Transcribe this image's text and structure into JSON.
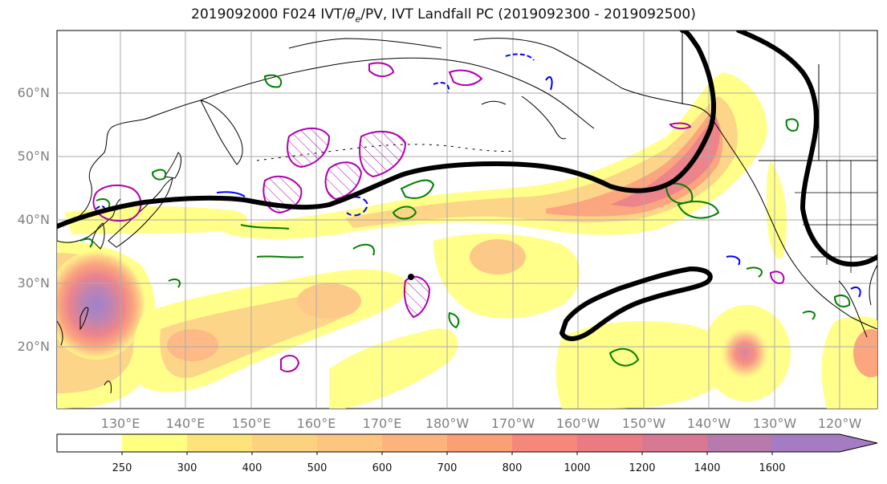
{
  "title": "2019092000 F024 IVT/θe/PV, IVT Landfall PC (2019092300 - 2019092500)",
  "title_parts": {
    "prefix": "2019092000 F024 IVT/",
    "theta": "θ",
    "theta_sub": "e",
    "suffix": "/PV, IVT Landfall PC (2019092300 - 2019092500)"
  },
  "axes": {
    "lat_labels": [
      "60°N",
      "50°N",
      "40°N",
      "30°N",
      "20°N"
    ],
    "lon_labels": [
      "130°E",
      "140°E",
      "150°E",
      "160°E",
      "170°E",
      "180°W",
      "170°W",
      "160°W",
      "150°W",
      "140°W",
      "130°W",
      "120°W"
    ]
  },
  "colorbar": {
    "labels": [
      "250",
      "300",
      "400",
      "500",
      "600",
      "700",
      "800",
      "1000",
      "1200",
      "1400",
      "1600"
    ],
    "colors": [
      "#ffffff",
      "#ffff80",
      "#fce47a",
      "#fdd27e",
      "#fdc580",
      "#fdb47c",
      "#fb9f74",
      "#f7877a",
      "#ec7a82",
      "#d87893",
      "#b77aac",
      "#a57cc4",
      "#a57cc4"
    ]
  },
  "colors": {
    "ivt_low": "#ffff80",
    "ivt_high": "#a57cc4",
    "pc_contour": "#000000",
    "pv_contour": "#b000b0",
    "theta_contour": "#008000",
    "negative_contour": "#0000ff",
    "coastline": "#000000",
    "grid": "#aaaaaa"
  }
}
